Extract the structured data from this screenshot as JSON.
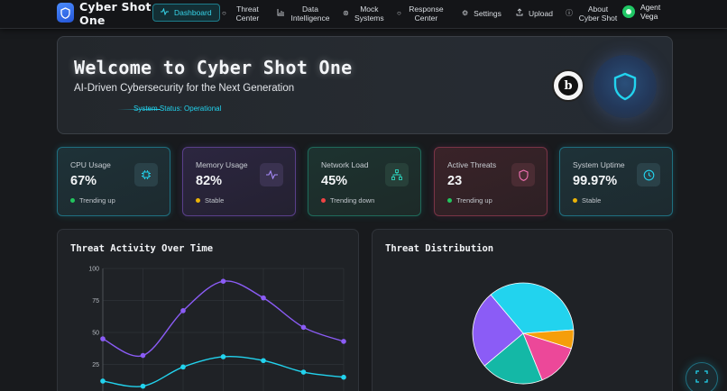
{
  "nav": {
    "brand": "Cyber Shot One",
    "items": [
      {
        "label": "Dashboard",
        "icon": "pulse-icon"
      },
      {
        "label": "Threat Center",
        "icon": "dot-circle-icon"
      },
      {
        "label": "Data Intelligence",
        "icon": "bar-chart-icon"
      },
      {
        "label": "Mock Systems",
        "icon": "cog-dot-icon"
      },
      {
        "label": "Response Center",
        "icon": "dot-circle-icon"
      },
      {
        "label": "Settings",
        "icon": "gear-icon"
      },
      {
        "label": "Upload",
        "icon": "upload-icon"
      },
      {
        "label": "About Cyber Shot",
        "icon": "info-icon"
      }
    ],
    "agent": "Agent Vega"
  },
  "hero": {
    "title": "Welcome to Cyber Shot One",
    "subtitle": "AI-Driven Cybersecurity for the Next Generation",
    "status": "System Status: Operational",
    "badge_letter": "b"
  },
  "stats": [
    {
      "label": "CPU Usage",
      "value": "67%",
      "trend": "Trending up",
      "trend_color": "#22c55e"
    },
    {
      "label": "Memory Usage",
      "value": "82%",
      "trend": "Stable",
      "trend_color": "#eab308"
    },
    {
      "label": "Network Load",
      "value": "45%",
      "trend": "Trending down",
      "trend_color": "#ef4444"
    },
    {
      "label": "Active Threats",
      "value": "23",
      "trend": "Trending up",
      "trend_color": "#22c55e"
    },
    {
      "label": "System Uptime",
      "value": "99.97%",
      "trend": "Stable",
      "trend_color": "#eab308"
    }
  ],
  "panels": {
    "line_title": "Threat Activity Over Time",
    "pie_title": "Threat Distribution"
  },
  "chart_data": [
    {
      "type": "line",
      "title": "Threat Activity Over Time",
      "y_ticks": [
        "100",
        "75",
        "50",
        "25"
      ],
      "ylim": [
        0,
        100
      ],
      "grid": true,
      "series": [
        {
          "values": [
            45,
            32,
            67,
            90,
            77,
            54,
            43
          ],
          "color": "#8b5cf6"
        },
        {
          "values": [
            12,
            8,
            23,
            31,
            28,
            19,
            15
          ],
          "color": "#22d3ee"
        }
      ]
    },
    {
      "type": "pie",
      "title": "Threat Distribution",
      "values": [
        35,
        6,
        14,
        20,
        25
      ],
      "colors": [
        "#22d3ee",
        "#f59e0b",
        "#ec4899",
        "#14b8a6",
        "#8b5cf6"
      ]
    }
  ]
}
